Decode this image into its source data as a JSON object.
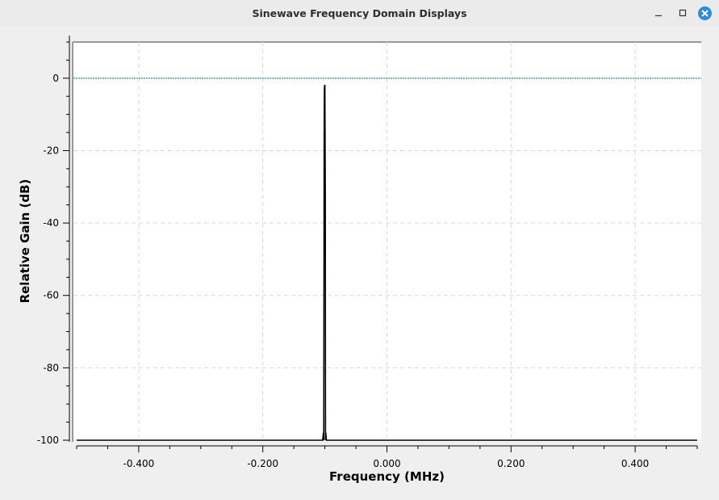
{
  "window": {
    "title": "Sinewave Frequency Domain Displays"
  },
  "colors": {
    "close_button": "#2a8be0",
    "trace": "#000000",
    "max_hold_line": "#007a7a",
    "grid": "#d8d8d8"
  },
  "chart_data": {
    "type": "line",
    "xlabel": "Frequency (MHz)",
    "ylabel": "Relative Gain (dB)",
    "xlim": [
      -0.5,
      0.5
    ],
    "ylim": [
      -100,
      10
    ],
    "x_ticks": [
      -0.4,
      -0.2,
      0.0,
      0.2,
      0.4
    ],
    "x_tick_labels": [
      "-0.400",
      "-0.200",
      "0.000",
      "0.200",
      "0.400"
    ],
    "y_ticks": [
      0,
      -20,
      -40,
      -60,
      -80,
      -100
    ],
    "y_tick_labels": [
      "0",
      "-20",
      "-40",
      "-60",
      "-80",
      "-100"
    ],
    "grid": true,
    "series": [
      {
        "x": [
          -0.5,
          -0.1035,
          -0.1025,
          -0.1018,
          -0.1012,
          -0.1008,
          -0.1004,
          -0.1,
          -0.0996,
          -0.0993,
          -0.099,
          -0.0985,
          -0.0975,
          0.5
        ],
        "y": [
          -100,
          -100,
          -98,
          -100,
          -19,
          -3,
          -2,
          -2,
          -20,
          -32,
          -100,
          -98,
          -100,
          -100
        ]
      },
      {
        "x": [
          -0.5,
          0.5
        ],
        "y": [
          0,
          0
        ]
      }
    ]
  }
}
